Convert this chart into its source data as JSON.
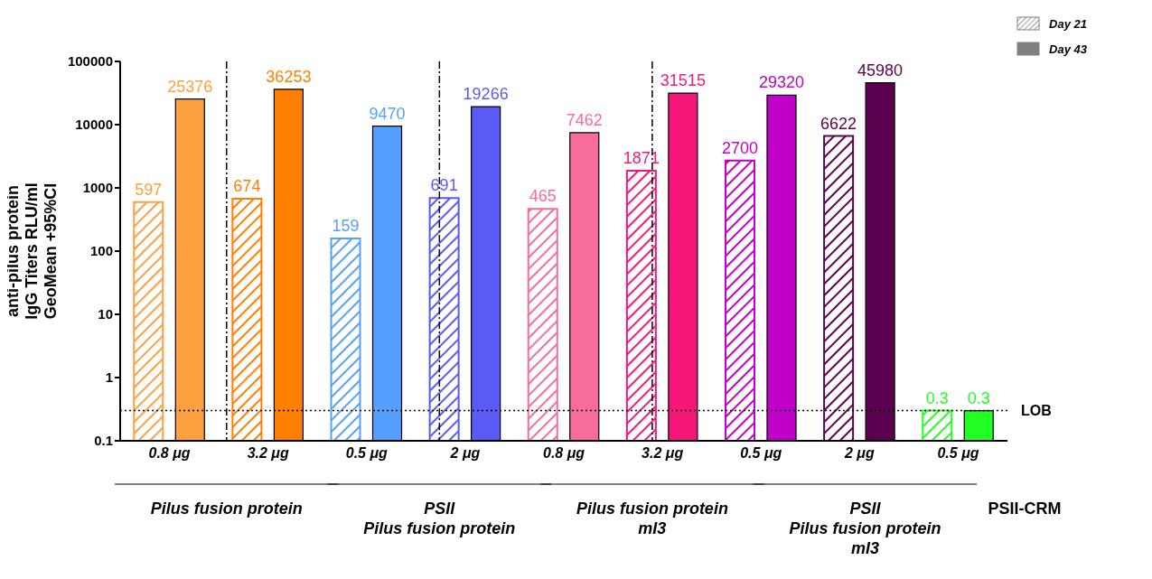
{
  "chart_data": {
    "type": "bar",
    "ylabel": "anti-pilus protein\nIgG Titers RLU/ml\nGeoMean +95%CI",
    "categories": [
      "0.8 μg",
      "3.2 μg",
      "0.5 μg",
      "2 μg",
      "0.8 μg",
      "3.2 μg",
      "0.5 μg",
      "2 μg",
      "0.5 μg"
    ],
    "series": [
      {
        "name": "Day 21",
        "color": "#808080",
        "colors": [
          "#ffa040",
          "#ff8000",
          "#55a0ff",
          "#5a5af5",
          "#f76c9a",
          "#f5187a",
          "#c000c8",
          "#5c0050",
          "#22ff22"
        ],
        "values": [
          597,
          674,
          159,
          691,
          465,
          1871,
          2700,
          6622,
          0.3
        ]
      },
      {
        "name": "Day 43",
        "color": "#808080",
        "colors": [
          "#ffa040",
          "#ff8000",
          "#55a0ff",
          "#5a5af5",
          "#f76c9a",
          "#f5187a",
          "#c000c8",
          "#5c0050",
          "#22ff22"
        ],
        "values": [
          25376,
          36253,
          9470,
          19266,
          7462,
          31515,
          29320,
          45980,
          0.3
        ]
      }
    ],
    "log": true,
    "ylim": [
      0.1,
      100000
    ],
    "yticks": [
      0.1,
      1,
      10,
      100,
      1000,
      10000,
      100000
    ],
    "data_labels": true,
    "legend": "top right",
    "grid": false,
    "ref_lines": [
      {
        "axis": "y",
        "value": 0.3,
        "label": "LOB",
        "line_style": "dotted",
        "color": "#000000"
      }
    ],
    "annotations": [
      "Pilus fusion protein",
      "PSII\nPilus fusion protein",
      "Pilus fusion protein\nmI3",
      "PSII\nPilus fusion protein\nmI3",
      "PSII-CRM"
    ]
  }
}
